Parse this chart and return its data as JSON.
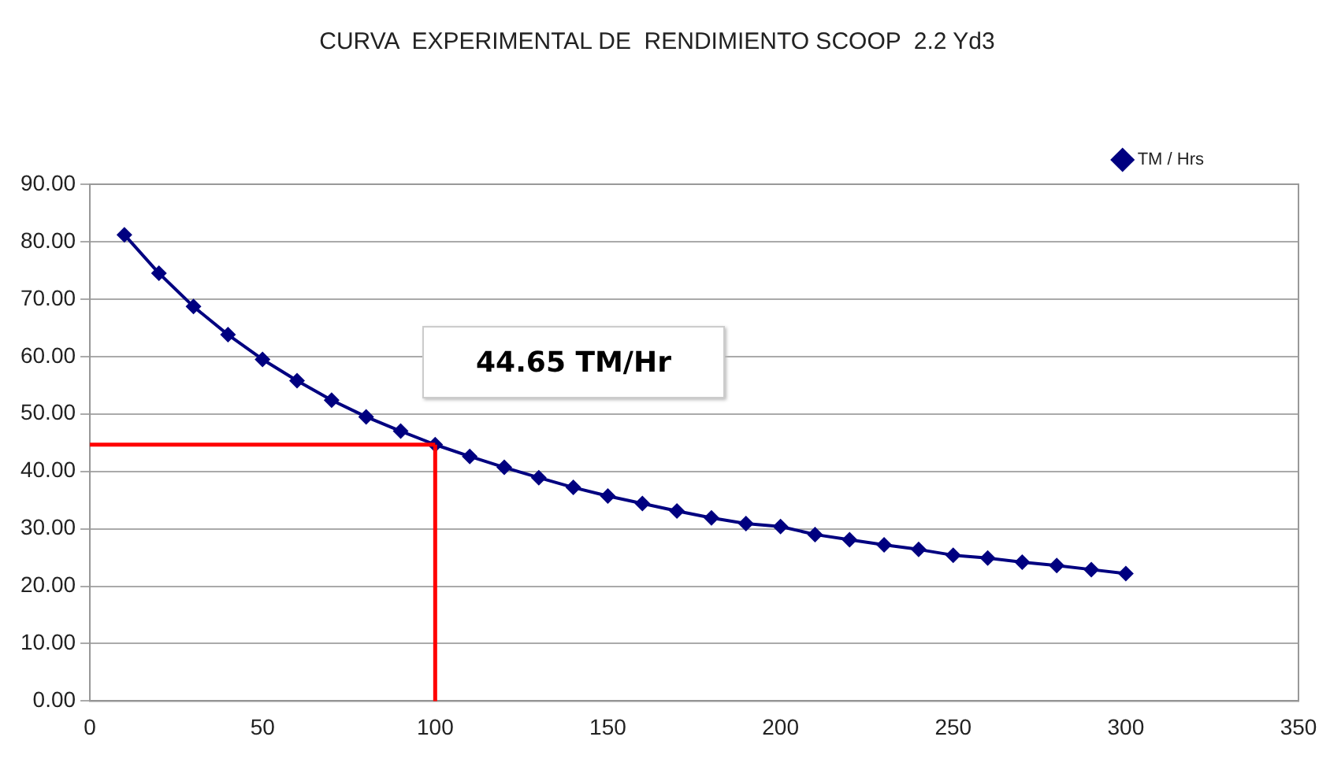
{
  "chart_data": {
    "type": "line",
    "title": "CURVA  EXPERIMENTAL DE  RENDIMIENTO SCOOP  2.2 Yd3",
    "x": [
      10,
      20,
      30,
      40,
      50,
      60,
      70,
      80,
      90,
      100,
      110,
      120,
      130,
      140,
      150,
      160,
      170,
      180,
      190,
      200,
      210,
      220,
      230,
      240,
      250,
      260,
      270,
      280,
      290,
      300
    ],
    "series": [
      {
        "name": "TM / Hrs",
        "color": "#000080",
        "values": [
          81.2,
          74.5,
          68.7,
          63.8,
          59.5,
          55.8,
          52.4,
          49.5,
          47.0,
          44.65,
          42.6,
          40.7,
          38.9,
          37.2,
          35.7,
          34.4,
          33.1,
          31.9,
          30.9,
          30.4,
          29.0,
          28.1,
          27.2,
          26.4,
          25.4,
          24.9,
          24.2,
          23.6,
          22.9,
          22.2
        ]
      }
    ],
    "xlim": [
      0,
      350
    ],
    "xticks": [
      0,
      50,
      100,
      150,
      200,
      250,
      300,
      350
    ],
    "ylim": [
      0,
      90
    ],
    "yticks": [
      {
        "value": 0,
        "label": "0.00"
      },
      {
        "value": 10,
        "label": "10.00"
      },
      {
        "value": 20,
        "label": "20.00"
      },
      {
        "value": 30,
        "label": "30.00"
      },
      {
        "value": 40,
        "label": "40.00"
      },
      {
        "value": 50,
        "label": "50.00"
      },
      {
        "value": 60,
        "label": "60.00"
      },
      {
        "value": 70,
        "label": "70.00"
      },
      {
        "value": 80,
        "label": "80.00"
      },
      {
        "value": 90,
        "label": "90.00"
      }
    ],
    "ref_lines": [
      {
        "axis": "x",
        "value": 100,
        "color": "#ff0000"
      },
      {
        "axis": "y",
        "value": 44.65,
        "color": "#ff0000"
      }
    ],
    "annotations": [
      "44.65 TM/Hr"
    ],
    "grid": "y",
    "legend": "top right",
    "marker": "diamond",
    "line_style": "solid"
  }
}
